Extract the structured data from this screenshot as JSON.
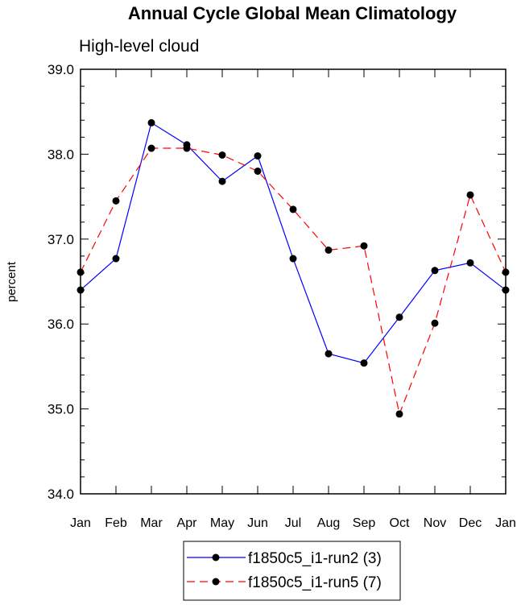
{
  "chart_data": {
    "type": "line",
    "title": "Annual Cycle Global Mean Climatology",
    "subtitle": "High-level cloud",
    "xlabel": "",
    "ylabel": "percent",
    "ylim": [
      34.0,
      39.0
    ],
    "yticks": [
      "34.0",
      "35.0",
      "36.0",
      "37.0",
      "38.0",
      "39.0"
    ],
    "categories": [
      "Jan",
      "Feb",
      "Mar",
      "Apr",
      "May",
      "Jun",
      "Jul",
      "Aug",
      "Sep",
      "Oct",
      "Nov",
      "Dec",
      "Jan"
    ],
    "grid": false,
    "legend_position": "bottom",
    "series": [
      {
        "name": "f1850c5_i1-run2 (3)",
        "color": "#0000ff",
        "dash": "solid",
        "values": [
          36.4,
          36.77,
          38.37,
          38.11,
          37.68,
          37.98,
          36.77,
          35.65,
          35.54,
          36.08,
          36.63,
          36.72,
          36.4
        ]
      },
      {
        "name": "f1850c5_i1-run5 (7)",
        "color": "#ff0000",
        "dash": "dashed",
        "values": [
          36.61,
          37.45,
          38.07,
          38.07,
          37.99,
          37.8,
          37.35,
          36.87,
          36.92,
          34.94,
          36.01,
          37.52,
          36.61
        ]
      }
    ]
  }
}
